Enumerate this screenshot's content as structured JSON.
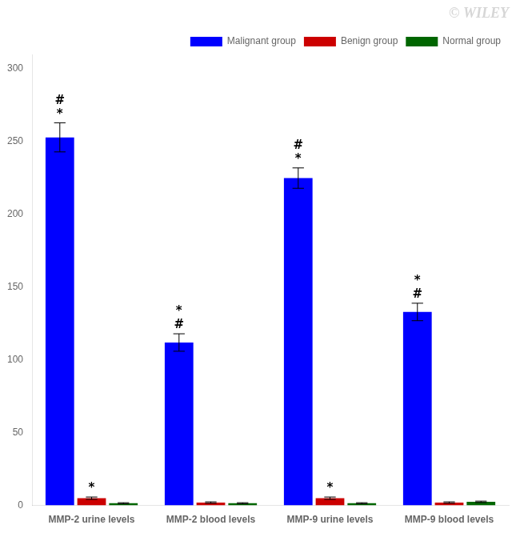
{
  "chart_data": {
    "type": "bar",
    "categories": [
      "MMP-2 urine levels",
      "MMP-2 blood levels",
      "MMP-9 urine levels",
      "MMP-9 blood levels"
    ],
    "series": [
      {
        "name": "Malignant group",
        "color": "#0000FF",
        "values": [
          253,
          112,
          225,
          133
        ],
        "errors": [
          10,
          6,
          7,
          6
        ]
      },
      {
        "name": "Benign group",
        "color": "#CC0000",
        "values": [
          5,
          2,
          5,
          2
        ],
        "errors": [
          0.8,
          0.5,
          0.8,
          0.5
        ]
      },
      {
        "name": "Normal group",
        "color": "#006600",
        "values": [
          1.5,
          1.5,
          1.5,
          2.5
        ],
        "errors": [
          0.4,
          0.4,
          0.4,
          0.5
        ]
      }
    ],
    "ylim": [
      0,
      310
    ],
    "yticks": [
      0,
      50,
      100,
      150,
      200,
      250,
      300
    ],
    "grid": false,
    "legend": "upper right",
    "annotations": [
      {
        "text": "*",
        "series": "Malignant group",
        "category": "MMP-2 urine levels"
      },
      {
        "text": "#",
        "series": "Malignant group",
        "category": "MMP-2 urine levels"
      },
      {
        "text": "*",
        "series": "Benign group",
        "category": "MMP-2 urine levels"
      },
      {
        "text": "#",
        "series": "Malignant group",
        "category": "MMP-2 blood levels"
      },
      {
        "text": "*",
        "series": "Malignant group",
        "category": "MMP-2 blood levels"
      },
      {
        "text": "*",
        "series": "Malignant group",
        "category": "MMP-9 urine levels"
      },
      {
        "text": "#",
        "series": "Malignant group",
        "category": "MMP-9 urine levels"
      },
      {
        "text": "*",
        "series": "Benign group",
        "category": "MMP-9 urine levels"
      },
      {
        "text": "#",
        "series": "Malignant group",
        "category": "MMP-9 blood levels"
      },
      {
        "text": "*",
        "series": "Malignant group",
        "category": "MMP-9 blood levels"
      },
      {
        "text": "© WILEY",
        "color": "#BBBBBB"
      }
    ]
  }
}
